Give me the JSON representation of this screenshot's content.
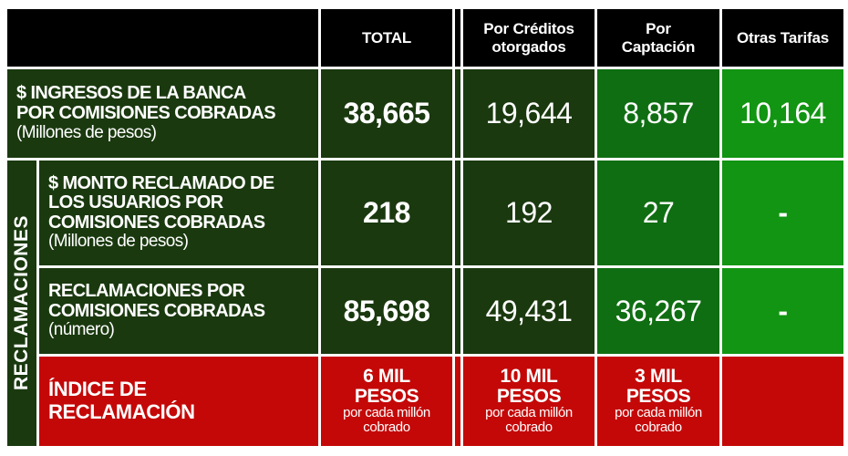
{
  "colors": {
    "header_bg": "#000000",
    "dark_green": "#1A390F",
    "medium_green": "#0F6E12",
    "bright_green": "#119512",
    "red": "#C40808",
    "text": "#FFFFFF",
    "grid": "#FFFFFF"
  },
  "header": {
    "corner": "",
    "total": "TOTAL",
    "creditos": "Por Créditos\notorgados",
    "captacion": "Por\nCaptación",
    "otras": "Otras Tarifas"
  },
  "group_label": "RECLAMACIONES",
  "rows": {
    "ingresos": {
      "title": "$ INGRESOS DE LA BANCA\nPOR COMISIONES COBRADAS",
      "subtitle": "(Millones de pesos)",
      "total": "38,665",
      "creditos": "19,644",
      "captacion": "8,857",
      "otras": "10,164"
    },
    "monto": {
      "title": "$ MONTO RECLAMADO DE\nLOS USUARIOS POR\nCOMISIONES COBRADAS",
      "subtitle": "(Millones de pesos)",
      "total": "218",
      "creditos": "192",
      "captacion": "27",
      "otras": "-"
    },
    "numero": {
      "title": "RECLAMACIONES POR\nCOMISIONES COBRADAS",
      "subtitle": "(número)",
      "total": "85,698",
      "creditos": "49,431",
      "captacion": "36,267",
      "otras": "-"
    },
    "indice": {
      "title": "ÍNDICE DE\nRECLAMACIÓN",
      "total_amount": "6 MIL\nPESOS",
      "total_unit": "por cada millón\ncobrado",
      "creditos_amount": "10 MIL\nPESOS",
      "creditos_unit": "por cada millón\ncobrado",
      "captacion_amount": "3 MIL\nPESOS",
      "captacion_unit": "por cada millón\ncobrado",
      "otras_amount": "",
      "otras_unit": ""
    }
  },
  "chart_data": {
    "type": "table",
    "columns": [
      "",
      "TOTAL",
      "Por Créditos otorgados",
      "Por Captación",
      "Otras Tarifas"
    ],
    "rows": [
      {
        "group": "",
        "label": "$ INGRESOS DE LA BANCA POR COMISIONES COBRADAS (Millones de pesos)",
        "values": [
          38665,
          19644,
          8857,
          10164
        ]
      },
      {
        "group": "RECLAMACIONES",
        "label": "$ MONTO RECLAMADO DE LOS USUARIOS POR COMISIONES COBRADAS (Millones de pesos)",
        "values": [
          218,
          192,
          27,
          null
        ]
      },
      {
        "group": "RECLAMACIONES",
        "label": "RECLAMACIONES POR COMISIONES COBRADAS (número)",
        "values": [
          85698,
          49431,
          36267,
          null
        ]
      },
      {
        "group": "RECLAMACIONES",
        "label": "ÍNDICE DE RECLAMACIÓN",
        "values": [
          "6 MIL PESOS por cada millón cobrado",
          "10 MIL PESOS por cada millón cobrado",
          "3 MIL PESOS por cada millón cobrado",
          ""
        ]
      }
    ]
  }
}
